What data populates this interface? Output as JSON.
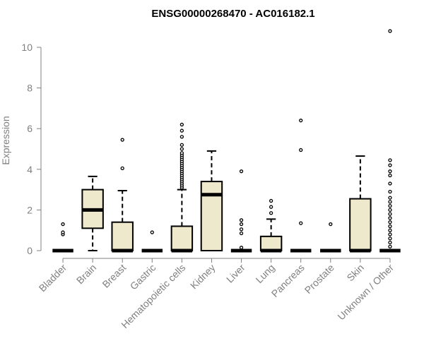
{
  "chart_data": {
    "type": "box",
    "title": "ENSG00000268470 - AC016182.1",
    "xlabel": "",
    "ylabel": "Expression",
    "ylim": [
      0,
      10
    ],
    "yticks": [
      0,
      2,
      4,
      6,
      8,
      10
    ],
    "box_color": "#EEE8CD",
    "categories": [
      "Bladder",
      "Brain",
      "Breast",
      "Gastric",
      "Hematopoietic cells",
      "Kidney",
      "Liver",
      "Lung",
      "Pancreas",
      "Prostate",
      "Skin",
      "Unknown / Other"
    ],
    "boxes": [
      {
        "min": 0,
        "q1": 0,
        "median": 0,
        "q3": 0,
        "max": 0,
        "outliers": [
          0.8,
          0.9,
          1.3
        ]
      },
      {
        "min": 0,
        "q1": 1.1,
        "median": 2.0,
        "q3": 3.0,
        "max": 3.65,
        "outliers": []
      },
      {
        "min": 0,
        "q1": 0,
        "median": 0,
        "q3": 1.4,
        "max": 2.95,
        "outliers": [
          4.05,
          5.45
        ]
      },
      {
        "min": 0,
        "q1": 0,
        "median": 0,
        "q3": 0,
        "max": 0,
        "outliers": [
          0.9
        ]
      },
      {
        "min": 0,
        "q1": 0,
        "median": 0,
        "q3": 1.2,
        "max": 3.0,
        "outliers": [
          3.1,
          3.2,
          3.3,
          3.4,
          3.5,
          3.6,
          3.7,
          3.8,
          3.9,
          4.0,
          4.1,
          4.2,
          4.3,
          4.4,
          4.5,
          4.6,
          4.7,
          4.8,
          5.0,
          5.2,
          5.6,
          5.9,
          6.2
        ]
      },
      {
        "min": 0,
        "q1": 0,
        "median": 2.75,
        "q3": 3.4,
        "max": 4.9,
        "outliers": []
      },
      {
        "min": 0,
        "q1": 0,
        "median": 0,
        "q3": 0,
        "max": 0,
        "outliers": [
          0.15,
          0.85,
          1.05,
          1.3,
          1.5,
          3.9
        ]
      },
      {
        "min": 0,
        "q1": 0,
        "median": 0,
        "q3": 0.7,
        "max": 1.55,
        "outliers": [
          1.85,
          2.15,
          2.45
        ]
      },
      {
        "min": 0,
        "q1": 0,
        "median": 0,
        "q3": 0,
        "max": 0,
        "outliers": [
          1.35,
          4.95,
          6.4
        ]
      },
      {
        "min": 0,
        "q1": 0,
        "median": 0,
        "q3": 0,
        "max": 0,
        "outliers": [
          1.3
        ]
      },
      {
        "min": 0,
        "q1": 0,
        "median": 0,
        "q3": 2.55,
        "max": 4.65,
        "outliers": []
      },
      {
        "min": 0,
        "q1": 0,
        "median": 0,
        "q3": 0,
        "max": 0,
        "outliers": [
          0.2,
          0.4,
          0.6,
          0.8,
          1.0,
          1.2,
          1.4,
          1.6,
          1.8,
          2.0,
          2.2,
          2.4,
          2.6,
          2.9,
          3.3,
          3.7,
          3.9,
          4.2,
          4.45,
          10.8
        ]
      }
    ]
  }
}
